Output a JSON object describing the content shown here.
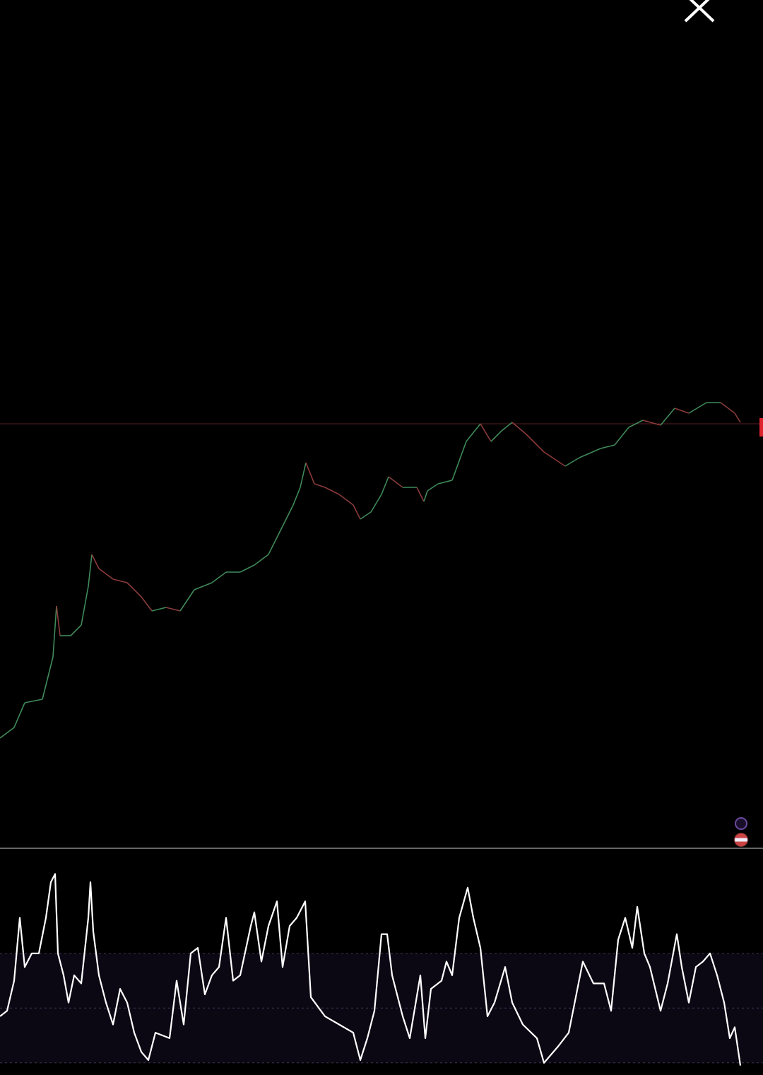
{
  "window": {
    "close_icon": "close-x-icon"
  },
  "badges": [
    "indicator-icon",
    "us-flag-icon"
  ],
  "colors": {
    "background": "#000000",
    "up": "#3f8a5a",
    "down": "#8c3b3b",
    "price_line": "#6b2a2a",
    "oscillator": "#ffffff",
    "band_fill": "#0b0814",
    "current_price_tag": "#e0242e",
    "divider": "#555555"
  },
  "chart_data": [
    {
      "type": "line",
      "panel": "price",
      "axes_printed": false,
      "grid": false,
      "ylim": [
        0,
        110
      ],
      "current_level": 50,
      "x": [
        0,
        20,
        35,
        60,
        75,
        80,
        85,
        100,
        115,
        125,
        130,
        140,
        160,
        180,
        200,
        215,
        235,
        255,
        275,
        300,
        320,
        340,
        360,
        380,
        400,
        415,
        425,
        433,
        445,
        460,
        480,
        500,
        510,
        525,
        540,
        550,
        570,
        590,
        600,
        605,
        620,
        640,
        660,
        680,
        695,
        710,
        725,
        745,
        770,
        800,
        820,
        850,
        870,
        890,
        910,
        935,
        955,
        975,
        1000,
        1020,
        1040,
        1048
      ],
      "values": [
        5.5,
        7,
        10.5,
        11,
        17,
        24.2,
        20,
        20,
        21.5,
        27,
        31.5,
        29.5,
        28,
        27.5,
        25.5,
        23.5,
        24,
        23.5,
        26.5,
        27.5,
        29,
        29,
        30,
        31.5,
        35.5,
        38.5,
        41,
        44.5,
        41.5,
        41,
        40,
        38.5,
        36.5,
        37.5,
        40,
        42.5,
        41,
        41,
        39,
        40.5,
        41.5,
        42,
        47.5,
        50,
        47.5,
        49,
        50.2,
        48.5,
        46,
        44,
        45.2,
        46.5,
        47,
        49.5,
        50.5,
        49.8,
        52.2,
        51.5,
        53,
        53,
        51.5,
        50.2
      ]
    },
    {
      "type": "line",
      "panel": "oscillator",
      "axes_printed": false,
      "ylim": [
        0,
        100
      ],
      "bands": [
        30,
        50,
        70
      ],
      "x": [
        0,
        10,
        20,
        28,
        35,
        45,
        55,
        65,
        72,
        78,
        82,
        90,
        97,
        105,
        115,
        125,
        128,
        132,
        140,
        150,
        160,
        170,
        180,
        190,
        200,
        210,
        220,
        240,
        250,
        260,
        270,
        280,
        290,
        300,
        310,
        320,
        330,
        340,
        355,
        360,
        370,
        380,
        392,
        400,
        410,
        420,
        432,
        440,
        460,
        480,
        500,
        510,
        520,
        530,
        540,
        548,
        555,
        570,
        580,
        595,
        602,
        610,
        625,
        632,
        640,
        650,
        662,
        670,
        680,
        690,
        700,
        715,
        725,
        740,
        760,
        770,
        790,
        805,
        815,
        825,
        840,
        855,
        865,
        875,
        885,
        895,
        902,
        912,
        920,
        935,
        945,
        958,
        965,
        975,
        985,
        995,
        1005,
        1015,
        1025,
        1033,
        1040,
        1048
      ],
      "values": [
        47,
        49,
        60,
        83,
        65,
        70,
        70,
        83,
        96,
        99,
        70,
        62,
        52,
        62,
        59,
        83,
        96,
        78,
        62,
        52,
        44,
        57,
        52,
        41,
        34,
        31,
        41,
        39,
        60,
        44,
        70,
        72,
        55,
        62,
        65,
        83,
        60,
        62,
        80,
        85,
        67,
        80,
        89,
        65,
        80,
        83,
        89,
        54,
        47,
        44,
        41,
        31,
        39,
        49,
        77,
        77,
        62,
        47,
        39,
        62,
        39,
        57,
        60,
        67,
        62,
        83,
        94,
        83,
        72,
        47,
        52,
        65,
        52,
        44,
        39,
        30,
        36,
        41,
        54,
        67,
        59,
        59,
        49,
        75,
        83,
        72,
        87,
        70,
        65,
        49,
        59,
        77,
        65,
        52,
        65,
        67,
        70,
        62,
        52,
        39,
        43,
        29
      ]
    }
  ]
}
